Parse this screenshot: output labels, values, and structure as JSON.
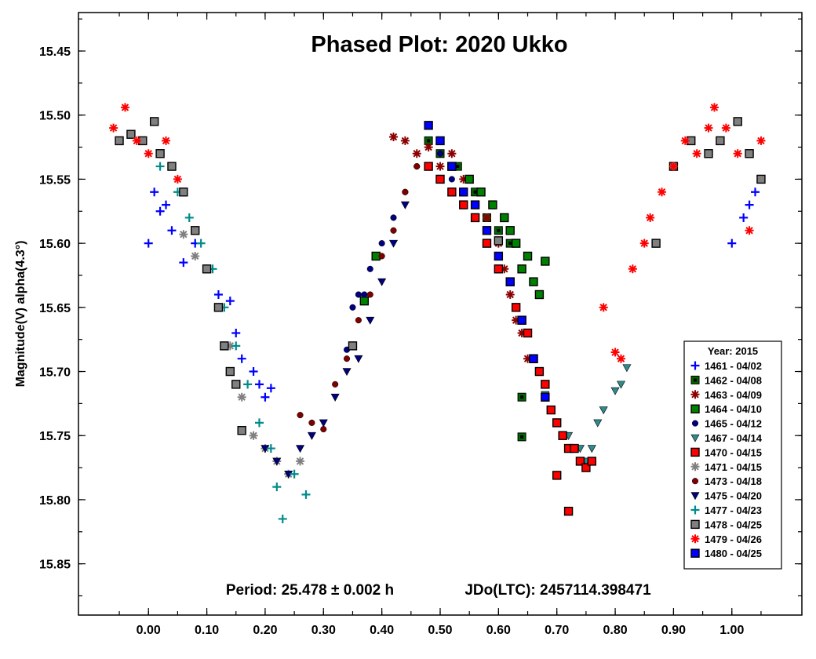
{
  "chart_data": {
    "type": "scatter",
    "title": "Phased Plot: 2020 Ukko",
    "ylabel": "Magnitude(V) alpha(4.3°)",
    "xlabel": "",
    "xlim": [
      -0.12,
      1.12
    ],
    "ylim": [
      15.42,
      15.89
    ],
    "y_inverted": true,
    "x_ticks": [
      0.0,
      0.1,
      0.2,
      0.3,
      0.4,
      0.5,
      0.6,
      0.7,
      0.8,
      0.9,
      1.0
    ],
    "x_tick_labels": [
      "0.00",
      "0.10",
      "0.20",
      "0.30",
      "0.40",
      "0.50",
      "0.60",
      "0.70",
      "0.80",
      "0.90",
      "1.00"
    ],
    "y_ticks": [
      15.45,
      15.5,
      15.55,
      15.6,
      15.65,
      15.7,
      15.75,
      15.8,
      15.85
    ],
    "y_tick_labels": [
      "15.45",
      "15.50",
      "15.55",
      "15.60",
      "15.65",
      "15.70",
      "15.75",
      "15.80",
      "15.85"
    ],
    "grid": false,
    "legend_position": "bottom-right",
    "legend_title": "Year: 2015",
    "annotation_left": "Period: 25.478 ± 0.002 h",
    "annotation_right": "JDo(LTC): 2457114.398471",
    "series": [
      {
        "name": "1461 - 04/02",
        "color": "#0000ff",
        "marker": "plus",
        "x": [
          0.0,
          0.01,
          0.02,
          0.03,
          0.04,
          0.06,
          0.08,
          0.1,
          0.12,
          0.14,
          0.15,
          0.16,
          0.18,
          0.19,
          0.2,
          0.21,
          1.0,
          1.02,
          1.03,
          1.04
        ],
        "y": [
          15.6,
          15.56,
          15.575,
          15.57,
          15.59,
          15.615,
          15.6,
          15.62,
          15.64,
          15.645,
          15.67,
          15.69,
          15.7,
          15.71,
          15.72,
          15.713,
          15.6,
          15.58,
          15.57,
          15.56
        ]
      },
      {
        "name": "1462 - 04/08",
        "color": "#006400",
        "marker": "square-dot",
        "x": [
          0.48,
          0.5,
          0.53,
          0.56,
          0.58,
          0.6,
          0.62,
          0.64,
          0.66,
          0.64
        ],
        "y": [
          15.52,
          15.53,
          15.54,
          15.56,
          15.58,
          15.59,
          15.6,
          15.72,
          15.69,
          15.751
        ]
      },
      {
        "name": "1463 - 04/09",
        "color": "#8b0000",
        "marker": "asterisk",
        "x": [
          0.42,
          0.44,
          0.46,
          0.48,
          0.5,
          0.52,
          0.54,
          0.56,
          0.58,
          0.6,
          0.61,
          0.62,
          0.63,
          0.64,
          0.65
        ],
        "y": [
          15.517,
          15.52,
          15.53,
          15.525,
          15.54,
          15.53,
          15.55,
          15.57,
          15.58,
          15.6,
          15.62,
          15.64,
          15.66,
          15.67,
          15.69
        ]
      },
      {
        "name": "1464 - 04/10",
        "color": "#008000",
        "marker": "square",
        "x": [
          0.37,
          0.39,
          0.52,
          0.55,
          0.57,
          0.59,
          0.61,
          0.62,
          0.63,
          0.64,
          0.65,
          0.66,
          0.67,
          0.68
        ],
        "y": [
          15.645,
          15.61,
          15.54,
          15.55,
          15.56,
          15.57,
          15.58,
          15.59,
          15.6,
          15.62,
          15.61,
          15.63,
          15.64,
          15.614
        ]
      },
      {
        "name": "1465 - 04/12",
        "color": "#000080",
        "marker": "circle",
        "x": [
          0.34,
          0.35,
          0.36,
          0.37,
          0.38,
          0.4,
          0.42,
          0.44,
          0.46,
          0.48,
          0.5,
          0.52,
          0.54
        ],
        "y": [
          15.683,
          15.65,
          15.64,
          15.64,
          15.62,
          15.6,
          15.58,
          15.56,
          15.54,
          15.508,
          15.53,
          15.55,
          15.56
        ]
      },
      {
        "name": "1467 - 04/14",
        "color": "#2e8b8b",
        "marker": "triangle-down",
        "x": [
          0.68,
          0.7,
          0.72,
          0.74,
          0.75,
          0.76,
          0.77,
          0.78,
          0.8,
          0.81,
          0.82
        ],
        "y": [
          15.718,
          15.74,
          15.75,
          15.76,
          15.77,
          15.76,
          15.74,
          15.73,
          15.715,
          15.71,
          15.697
        ]
      },
      {
        "name": "1470 - 04/15",
        "color": "#ff0000",
        "marker": "square-red",
        "x": [
          0.48,
          0.5,
          0.52,
          0.54,
          0.56,
          0.58,
          0.6,
          0.62,
          0.63,
          0.64,
          0.65,
          0.66,
          0.67,
          0.68,
          0.69,
          0.7,
          0.71,
          0.72,
          0.73,
          0.74,
          0.75,
          0.76,
          0.7,
          0.72
        ],
        "y": [
          15.54,
          15.55,
          15.56,
          15.57,
          15.58,
          15.6,
          15.62,
          15.63,
          15.65,
          15.66,
          15.67,
          15.69,
          15.7,
          15.71,
          15.73,
          15.74,
          15.75,
          15.76,
          15.76,
          15.77,
          15.775,
          15.77,
          15.781,
          15.809
        ]
      },
      {
        "name": "1471 - 04/15",
        "color": "#808080",
        "marker": "asterisk",
        "x": [
          0.06,
          0.08,
          0.1,
          0.12,
          0.14,
          0.16,
          0.18,
          0.2,
          0.22,
          0.24,
          0.26
        ],
        "y": [
          15.593,
          15.61,
          15.62,
          15.65,
          15.68,
          15.72,
          15.75,
          15.76,
          15.77,
          15.78,
          15.77
        ]
      },
      {
        "name": "1473 - 04/18",
        "color": "#800000",
        "marker": "circle",
        "x": [
          0.26,
          0.28,
          0.3,
          0.32,
          0.34,
          0.36,
          0.38,
          0.4,
          0.42,
          0.44,
          0.46
        ],
        "y": [
          15.734,
          15.74,
          15.745,
          15.71,
          15.69,
          15.66,
          15.64,
          15.61,
          15.59,
          15.56,
          15.54
        ]
      },
      {
        "name": "1475 - 04/20",
        "color": "#000080",
        "marker": "triangle-down",
        "x": [
          0.2,
          0.22,
          0.24,
          0.26,
          0.28,
          0.3,
          0.32,
          0.34,
          0.36,
          0.38,
          0.4,
          0.42,
          0.44
        ],
        "y": [
          15.76,
          15.77,
          15.78,
          15.76,
          15.75,
          15.74,
          15.72,
          15.7,
          15.69,
          15.66,
          15.63,
          15.6,
          15.57
        ]
      },
      {
        "name": "1477 - 04/23",
        "color": "#008b8b",
        "marker": "plus",
        "x": [
          0.02,
          0.05,
          0.07,
          0.09,
          0.11,
          0.13,
          0.15,
          0.17,
          0.19,
          0.21,
          0.22,
          0.23,
          0.25,
          0.27
        ],
        "y": [
          15.54,
          15.56,
          15.58,
          15.6,
          15.62,
          15.65,
          15.68,
          15.71,
          15.74,
          15.76,
          15.79,
          15.815,
          15.78,
          15.796
        ]
      },
      {
        "name": "1478 - 04/25",
        "color": "#808080",
        "marker": "square-gray",
        "x": [
          -0.05,
          -0.03,
          -0.01,
          0.01,
          0.02,
          0.04,
          0.06,
          0.08,
          0.1,
          0.12,
          0.13,
          0.14,
          0.15,
          0.16,
          0.35,
          0.6,
          0.87,
          0.9,
          0.93,
          0.96,
          0.98,
          1.01,
          1.03,
          1.05
        ],
        "y": [
          15.52,
          15.515,
          15.52,
          15.505,
          15.53,
          15.54,
          15.56,
          15.59,
          15.62,
          15.65,
          15.68,
          15.7,
          15.71,
          15.746,
          15.68,
          15.598,
          15.6,
          15.54,
          15.52,
          15.53,
          15.52,
          15.505,
          15.53,
          15.55
        ]
      },
      {
        "name": "1479 - 04/26",
        "color": "#ff0000",
        "marker": "asterisk",
        "x": [
          -0.06,
          -0.04,
          -0.02,
          0.0,
          0.03,
          0.05,
          0.78,
          0.8,
          0.81,
          0.83,
          0.85,
          0.86,
          0.88,
          0.9,
          0.92,
          0.94,
          0.96,
          0.97,
          0.99,
          1.01,
          1.03,
          1.05
        ],
        "y": [
          15.51,
          15.494,
          15.52,
          15.53,
          15.52,
          15.55,
          15.65,
          15.685,
          15.69,
          15.62,
          15.6,
          15.58,
          15.56,
          15.54,
          15.52,
          15.53,
          15.51,
          15.494,
          15.51,
          15.53,
          15.59,
          15.52
        ]
      },
      {
        "name": "1480 - 04/25",
        "color": "#0000ff",
        "marker": "square-blue",
        "x": [
          0.48,
          0.5,
          0.52,
          0.54,
          0.56,
          0.58,
          0.6,
          0.62,
          0.64,
          0.66,
          0.68
        ],
        "y": [
          15.508,
          15.52,
          15.54,
          15.56,
          15.57,
          15.59,
          15.61,
          15.63,
          15.66,
          15.69,
          15.72
        ]
      }
    ]
  }
}
